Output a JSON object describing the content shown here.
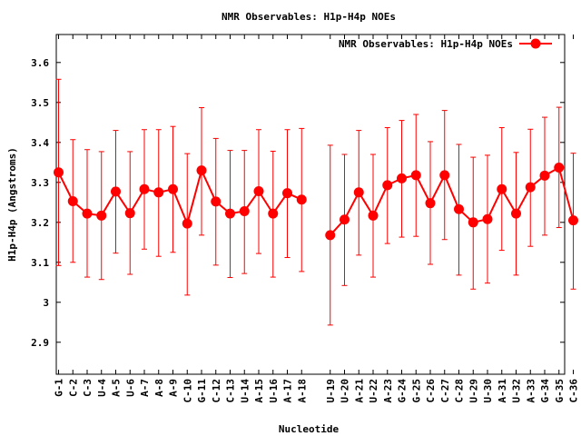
{
  "chart_data": {
    "type": "line",
    "title": "NMR Observables: H1p-H4p NOEs",
    "xlabel": "Nucleotide",
    "ylabel": "H1p-H4p (Angstroms)",
    "ylim": [
      2.82,
      3.67
    ],
    "yticks": [
      "2.9",
      "3",
      "3.1",
      "3.2",
      "3.3",
      "3.4",
      "3.5",
      "3.6"
    ],
    "grid": false,
    "legend_position": "top-right",
    "series_color": "#ff0000",
    "segments": [
      {
        "name": "NMR Observables: H1p-H4p NOEs",
        "categories": [
          "G-1",
          "C-2",
          "C-3",
          "U-4",
          "A-5",
          "U-6",
          "A-7",
          "A-8",
          "A-9",
          "C-10",
          "G-11",
          "C-12",
          "C-13",
          "U-14",
          "A-15",
          "U-16",
          "A-17",
          "A-18"
        ],
        "values": [
          3.325,
          3.253,
          3.222,
          3.217,
          3.277,
          3.223,
          3.283,
          3.275,
          3.283,
          3.197,
          3.33,
          3.252,
          3.222,
          3.228,
          3.278,
          3.222,
          3.273,
          3.257
        ],
        "err_high": [
          3.558,
          3.407,
          3.382,
          3.377,
          3.43,
          3.377,
          3.432,
          3.432,
          3.44,
          3.372,
          3.487,
          3.41,
          3.38,
          3.38,
          3.432,
          3.378,
          3.432,
          3.435
        ],
        "err_low": [
          3.092,
          3.1,
          3.063,
          3.057,
          3.123,
          3.07,
          3.133,
          3.115,
          3.125,
          3.018,
          3.168,
          3.093,
          3.062,
          3.072,
          3.122,
          3.063,
          3.112,
          3.077
        ]
      },
      {
        "categories": [
          "U-19",
          "U-20",
          "A-21",
          "U-22",
          "A-23",
          "G-24",
          "G-25",
          "C-26",
          "C-27",
          "C-28",
          "U-29",
          "U-30",
          "A-31",
          "U-32",
          "A-33",
          "G-34",
          "G-35",
          "C-36"
        ],
        "values": [
          3.168,
          3.207,
          3.275,
          3.217,
          3.293,
          3.31,
          3.318,
          3.248,
          3.318,
          3.233,
          3.2,
          3.208,
          3.283,
          3.222,
          3.288,
          3.317,
          3.337,
          3.205
        ],
        "err_high": [
          3.393,
          3.37,
          3.43,
          3.37,
          3.437,
          3.455,
          3.47,
          3.402,
          3.48,
          3.395,
          3.363,
          3.368,
          3.437,
          3.375,
          3.433,
          3.463,
          3.488,
          3.373
        ],
        "err_low": [
          2.943,
          3.042,
          3.118,
          3.063,
          3.147,
          3.163,
          3.165,
          3.095,
          3.157,
          3.068,
          3.033,
          3.048,
          3.13,
          3.068,
          3.14,
          3.168,
          3.187,
          3.033
        ]
      }
    ]
  }
}
